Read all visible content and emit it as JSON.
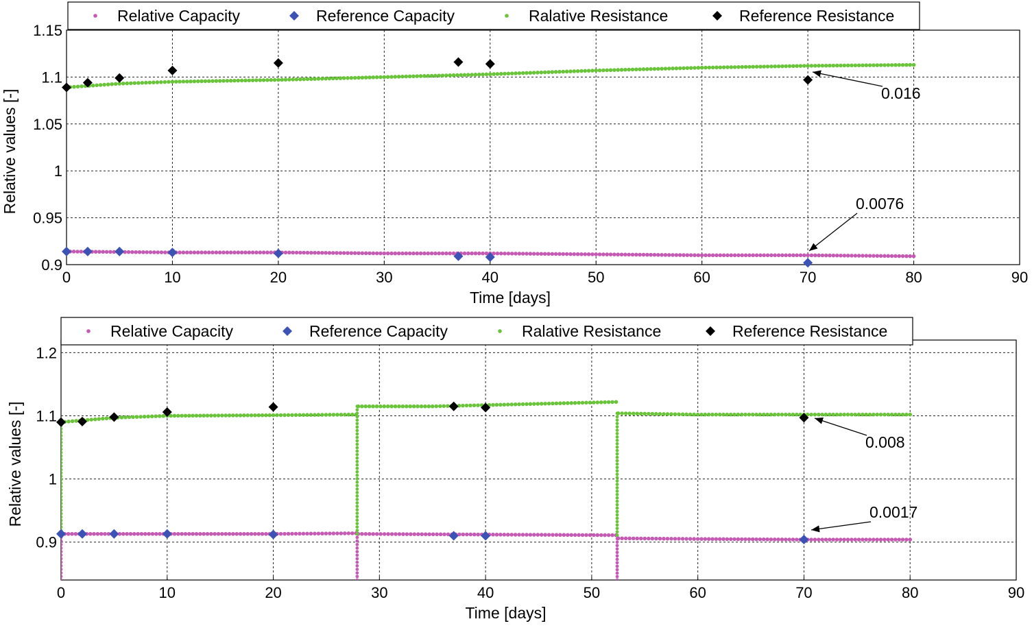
{
  "colors": {
    "capacity": "#c45ab3",
    "capacity_light": "#f2c6e4",
    "resistance": "#6ac43a",
    "ref_capacity": "#3d52b5",
    "ref_resistance": "#000000"
  },
  "chart_data": [
    {
      "type": "scatter",
      "xlabel": "Time [days]",
      "ylabel": "Relative values [-]",
      "xlim": [
        0,
        90
      ],
      "ylim": [
        0.9,
        1.15
      ],
      "xticks": [
        0,
        10,
        20,
        30,
        40,
        50,
        60,
        70,
        80,
        90
      ],
      "xtick_labels": [
        "0",
        "10",
        "20",
        "30",
        "40",
        "50",
        "60",
        "70",
        "80",
        "90"
      ],
      "yticks": [
        0.9,
        0.95,
        1.0,
        1.05,
        1.1,
        1.15
      ],
      "ytick_labels": [
        "0.9",
        "0.95",
        "1",
        "1.05",
        "1.1",
        "1.15"
      ],
      "grid": true,
      "legend": {
        "placement": "top",
        "entries": [
          "Relative Capacity",
          "Reference Capacity",
          "Ralative Resistance",
          "Reference Resistance"
        ]
      },
      "series": [
        {
          "name": "Relative Capacity",
          "style": "dots",
          "points": [
            [
              0,
              0.914
            ],
            [
              10,
              0.913
            ],
            [
              20,
              0.913
            ],
            [
              30,
              0.912
            ],
            [
              40,
              0.912
            ],
            [
              50,
              0.911
            ],
            [
              60,
              0.91
            ],
            [
              70,
              0.91
            ],
            [
              80,
              0.909
            ]
          ]
        },
        {
          "name": "Reference Capacity",
          "style": "diamond",
          "points": [
            [
              0,
              0.914
            ],
            [
              2,
              0.914
            ],
            [
              5,
              0.914
            ],
            [
              10,
              0.913
            ],
            [
              20,
              0.912
            ],
            [
              37,
              0.909
            ],
            [
              40,
              0.908
            ],
            [
              70,
              0.902
            ]
          ]
        },
        {
          "name": "Ralative Resistance",
          "style": "dots",
          "points": [
            [
              0,
              1.089
            ],
            [
              5,
              1.093
            ],
            [
              10,
              1.095
            ],
            [
              20,
              1.097
            ],
            [
              30,
              1.1
            ],
            [
              40,
              1.103
            ],
            [
              50,
              1.107
            ],
            [
              60,
              1.11
            ],
            [
              70,
              1.112
            ],
            [
              80,
              1.113
            ]
          ]
        },
        {
          "name": "Reference Resistance",
          "style": "diamond",
          "points": [
            [
              0,
              1.089
            ],
            [
              2,
              1.094
            ],
            [
              5,
              1.099
            ],
            [
              10,
              1.107
            ],
            [
              20,
              1.115
            ],
            [
              37,
              1.116
            ],
            [
              40,
              1.114
            ],
            [
              70,
              1.097
            ]
          ]
        }
      ],
      "annotations": [
        {
          "text": "0.016",
          "x": 70,
          "y": 1.112
        },
        {
          "text": "0.0076",
          "x": 70,
          "y": 0.91
        }
      ]
    },
    {
      "type": "scatter",
      "xlabel": "Time [days]",
      "ylabel": "Relative values [-]",
      "xlim": [
        0,
        90
      ],
      "ylim": [
        0.84,
        1.22
      ],
      "xticks": [
        0,
        10,
        20,
        30,
        40,
        50,
        60,
        70,
        80,
        90
      ],
      "xtick_labels": [
        "0",
        "10",
        "20",
        "30",
        "40",
        "50",
        "60",
        "70",
        "80",
        "90"
      ],
      "yticks": [
        0.9,
        1.0,
        1.1,
        1.2
      ],
      "ytick_labels": [
        "0.9",
        "1",
        "1.1",
        "1.2"
      ],
      "grid": true,
      "legend": {
        "placement": "top",
        "entries": [
          "Relative Capacity",
          "Reference Capacity",
          "Ralative Resistance",
          "Reference Resistance"
        ]
      },
      "series": [
        {
          "name": "Relative Capacity",
          "style": "dots",
          "segments": [
            [
              [
                0,
                0.913
              ],
              [
                10,
                0.913
              ],
              [
                20,
                0.913
              ],
              [
                27.8,
                0.914
              ]
            ],
            [
              [
                28,
                0.913
              ],
              [
                40,
                0.912
              ],
              [
                52.3,
                0.911
              ]
            ],
            [
              [
                52.5,
                0.906
              ],
              [
                60,
                0.905
              ],
              [
                70,
                0.904
              ],
              [
                80,
                0.904
              ]
            ]
          ],
          "drops": [
            [
              0,
              0.913,
              0.84
            ],
            [
              27.9,
              0.913,
              0.84
            ],
            [
              52.4,
              0.911,
              0.84
            ]
          ]
        },
        {
          "name": "Reference Capacity",
          "style": "diamond",
          "points": [
            [
              0,
              0.913
            ],
            [
              2,
              0.913
            ],
            [
              5,
              0.913
            ],
            [
              10,
              0.913
            ],
            [
              20,
              0.912
            ],
            [
              37,
              0.91
            ],
            [
              40,
              0.91
            ],
            [
              70,
              0.904
            ]
          ]
        },
        {
          "name": "Ralative Resistance",
          "style": "dots",
          "segments": [
            [
              [
                0,
                1.09
              ],
              [
                5,
                1.097
              ],
              [
                10,
                1.1
              ],
              [
                20,
                1.101
              ],
              [
                27.8,
                1.102
              ]
            ],
            [
              [
                28,
                1.115
              ],
              [
                35,
                1.115
              ],
              [
                40,
                1.117
              ],
              [
                52.3,
                1.122
              ]
            ],
            [
              [
                52.5,
                1.104
              ],
              [
                60,
                1.102
              ],
              [
                70,
                1.102
              ],
              [
                80,
                1.102
              ]
            ]
          ],
          "drops": [
            [
              0,
              1.09,
              0.913
            ],
            [
              27.9,
              1.115,
              0.913
            ],
            [
              52.4,
              1.104,
              0.911
            ]
          ]
        },
        {
          "name": "Reference Resistance",
          "style": "diamond",
          "points": [
            [
              0,
              1.09
            ],
            [
              2,
              1.091
            ],
            [
              5,
              1.098
            ],
            [
              10,
              1.106
            ],
            [
              20,
              1.114
            ],
            [
              37,
              1.115
            ],
            [
              40,
              1.113
            ],
            [
              70,
              1.097
            ]
          ]
        }
      ],
      "annotations": [
        {
          "text": "0.008",
          "x": 70,
          "y": 1.102
        },
        {
          "text": "0.0017",
          "x": 70,
          "y": 0.904
        }
      ]
    }
  ]
}
